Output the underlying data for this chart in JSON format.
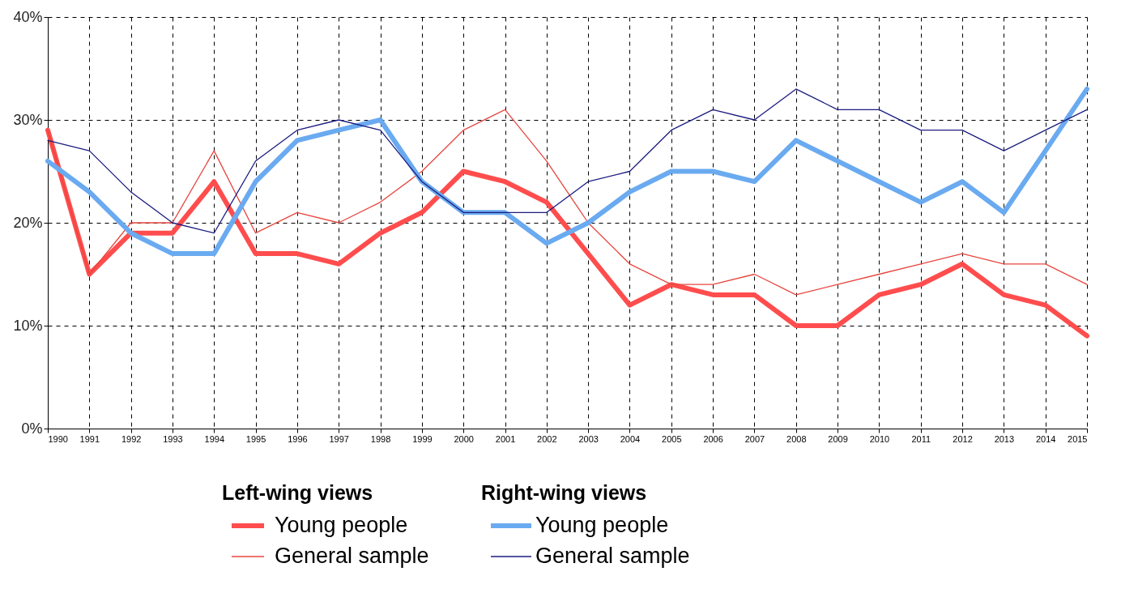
{
  "chart_data": {
    "type": "line",
    "x": [
      1990,
      1991,
      1992,
      1993,
      1994,
      1995,
      1996,
      1997,
      1998,
      1999,
      2000,
      2001,
      2002,
      2003,
      2004,
      2005,
      2006,
      2007,
      2008,
      2009,
      2010,
      2011,
      2012,
      2013,
      2014,
      2015
    ],
    "legend_title": [
      "Left-wing views",
      "Right-wing views"
    ],
    "series": [
      {
        "name": "Young people",
        "color": "#ff4d4d",
        "values": [
          29,
          15,
          19,
          19,
          24,
          17,
          17,
          16,
          19,
          21,
          25,
          24,
          22,
          17,
          12,
          14,
          13,
          13,
          10,
          10,
          13,
          14,
          16,
          13,
          12,
          9
        ]
      },
      {
        "name": "General sample",
        "color": "#e8463f",
        "values": [
          29,
          15,
          20,
          20,
          27,
          19,
          21,
          20,
          22,
          25,
          29,
          31,
          26,
          20,
          16,
          14,
          14,
          15,
          13,
          14,
          15,
          16,
          17,
          16,
          16,
          14
        ]
      },
      {
        "name": "Young people",
        "color": "#6aaaf0",
        "values": [
          26,
          23,
          19,
          17,
          17,
          24,
          28,
          29,
          30,
          24,
          21,
          21,
          18,
          20,
          23,
          25,
          25,
          24,
          28,
          26,
          24,
          22,
          24,
          21,
          27,
          33
        ]
      },
      {
        "name": "General sample",
        "color": "#1c1c80",
        "values": [
          28,
          27,
          23,
          20,
          19,
          26,
          29,
          30,
          29,
          24,
          21,
          21,
          21,
          24,
          25,
          29,
          31,
          30,
          33,
          31,
          31,
          29,
          29,
          27,
          29,
          31
        ]
      }
    ],
    "xlim": [
      1990,
      2015
    ],
    "xticks": [
      1990,
      1991,
      1992,
      1993,
      1994,
      1995,
      1996,
      1997,
      1998,
      1999,
      2000,
      2001,
      2002,
      2003,
      2004,
      2005,
      2006,
      2007,
      2008,
      2009,
      2010,
      2011,
      2012,
      2013,
      2014,
      2015
    ],
    "ylim": [
      0,
      40
    ],
    "yticks": [
      {
        "value": 0,
        "label": "0%"
      },
      {
        "value": 10,
        "label": "10%"
      },
      {
        "value": 20,
        "label": "20%"
      },
      {
        "value": 30,
        "label": "30%"
      },
      {
        "value": 40,
        "label": "40%"
      }
    ],
    "grid": true,
    "legend": "bottom",
    "line_style": "solid",
    "marker": "none"
  }
}
